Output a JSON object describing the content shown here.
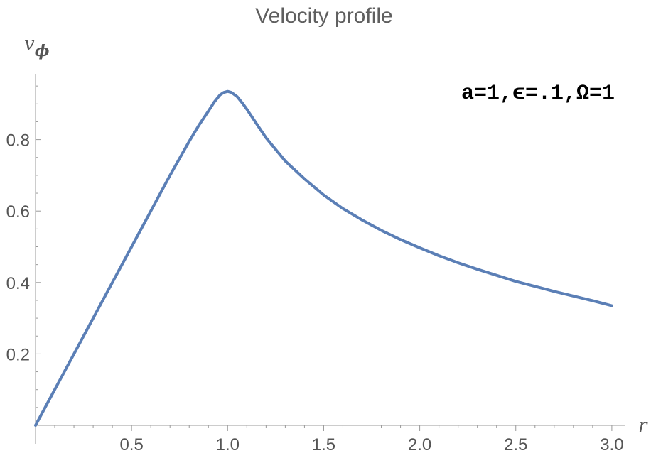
{
  "chart_data": {
    "type": "line",
    "title": "Velocity profile",
    "xlabel": "r",
    "ylabel_main": "v",
    "ylabel_sub": "ϕ",
    "annotation": "a=1,ϵ=.1,Ω=1",
    "xlim": [
      0,
      3.05
    ],
    "ylim": [
      0,
      0.97
    ],
    "x_ticks": [
      0.5,
      1.0,
      1.5,
      2.0,
      2.5,
      3.0
    ],
    "x_tick_labels": [
      "0.5",
      "1.0",
      "1.5",
      "2.0",
      "2.5",
      "3.0"
    ],
    "y_ticks": [
      0.2,
      0.4,
      0.6,
      0.8
    ],
    "y_tick_labels": [
      "0.2",
      "0.4",
      "0.6",
      "0.8"
    ],
    "grid": false,
    "series": [
      {
        "color": "#5b7fb6",
        "x": [
          0.0,
          0.1,
          0.2,
          0.3,
          0.4,
          0.5,
          0.6,
          0.7,
          0.8,
          0.85,
          0.9,
          0.93,
          0.96,
          0.98,
          1.0,
          1.02,
          1.05,
          1.08,
          1.1,
          1.15,
          1.2,
          1.3,
          1.4,
          1.5,
          1.6,
          1.7,
          1.8,
          1.9,
          2.0,
          2.1,
          2.2,
          2.3,
          2.4,
          2.5,
          2.6,
          2.7,
          2.8,
          2.9,
          3.0
        ],
        "y": [
          0.0,
          0.1,
          0.2,
          0.3,
          0.4,
          0.5,
          0.6,
          0.7,
          0.795,
          0.84,
          0.88,
          0.905,
          0.925,
          0.932,
          0.935,
          0.932,
          0.92,
          0.9,
          0.885,
          0.845,
          0.805,
          0.74,
          0.69,
          0.645,
          0.607,
          0.575,
          0.546,
          0.52,
          0.497,
          0.475,
          0.455,
          0.437,
          0.42,
          0.403,
          0.389,
          0.375,
          0.362,
          0.349,
          0.335
        ]
      }
    ]
  }
}
